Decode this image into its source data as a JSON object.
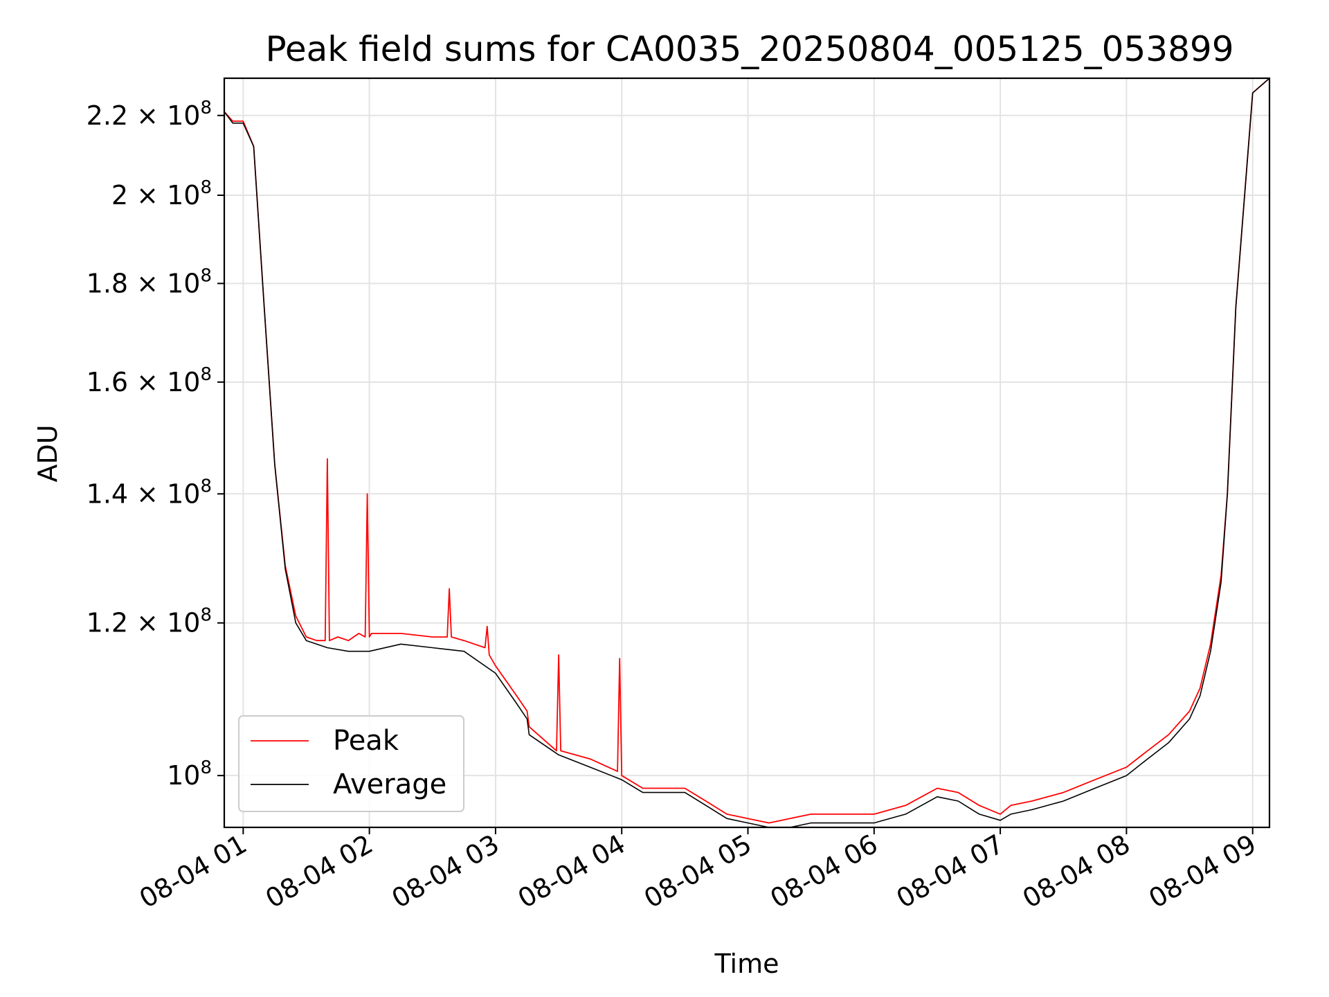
{
  "chart_data": {
    "type": "line",
    "title": "Peak field sums for CA0035_20250804_005125_053899",
    "xlabel": "Time",
    "ylabel": "ADU",
    "y_scale": "log",
    "grid": true,
    "legend_position": "lower-left",
    "xlim": [
      "2025-08-04 00:51",
      "2025-08-04 09:08"
    ],
    "ylim": [
      94000000,
      230000000
    ],
    "x_ticks": [
      "08-04 01",
      "08-04 02",
      "08-04 03",
      "08-04 04",
      "08-04 05",
      "08-04 06",
      "08-04 07",
      "08-04 08",
      "08-04 09"
    ],
    "y_ticks": [
      {
        "value": 220000000,
        "mant": "2.2",
        "exp": "8"
      },
      {
        "value": 200000000,
        "mant": "2",
        "exp": "8"
      },
      {
        "value": 180000000,
        "mant": "1.8",
        "exp": "8"
      },
      {
        "value": 160000000,
        "mant": "1.6",
        "exp": "8"
      },
      {
        "value": 140000000,
        "mant": "1.4",
        "exp": "8"
      },
      {
        "value": 120000000,
        "mant": "1.2",
        "exp": "8"
      },
      {
        "value": 100000000,
        "mant": "",
        "exp": "8"
      }
    ],
    "colors": {
      "Peak": "#ff0000",
      "Average": "#000000"
    },
    "series": [
      {
        "name": "Average",
        "x": [
          "2025-08-04 00:51",
          "2025-08-04 00:55",
          "2025-08-04 01:00",
          "2025-08-04 01:05",
          "2025-08-04 01:10",
          "2025-08-04 01:15",
          "2025-08-04 01:20",
          "2025-08-04 01:25",
          "2025-08-04 01:30",
          "2025-08-04 01:40",
          "2025-08-04 01:50",
          "2025-08-04 02:00",
          "2025-08-04 02:15",
          "2025-08-04 02:30",
          "2025-08-04 02:45",
          "2025-08-04 03:00",
          "2025-08-04 03:10",
          "2025-08-04 03:15",
          "2025-08-04 03:16",
          "2025-08-04 03:30",
          "2025-08-04 03:45",
          "2025-08-04 04:00",
          "2025-08-04 04:10",
          "2025-08-04 04:20",
          "2025-08-04 04:30",
          "2025-08-04 04:40",
          "2025-08-04 04:50",
          "2025-08-04 05:00",
          "2025-08-04 05:10",
          "2025-08-04 05:20",
          "2025-08-04 05:30",
          "2025-08-04 05:45",
          "2025-08-04 06:00",
          "2025-08-04 06:15",
          "2025-08-04 06:30",
          "2025-08-04 06:40",
          "2025-08-04 06:50",
          "2025-08-04 07:00",
          "2025-08-04 07:05",
          "2025-08-04 07:15",
          "2025-08-04 07:30",
          "2025-08-04 07:45",
          "2025-08-04 08:00",
          "2025-08-04 08:10",
          "2025-08-04 08:20",
          "2025-08-04 08:30",
          "2025-08-04 08:35",
          "2025-08-04 08:40",
          "2025-08-04 08:45",
          "2025-08-04 08:48",
          "2025-08-04 08:52",
          "2025-08-04 09:00",
          "2025-08-04 09:08"
        ],
        "values": [
          221000000,
          218000000,
          218000000,
          212000000,
          175000000,
          145000000,
          128000000,
          120000000,
          117500000,
          116500000,
          116000000,
          116000000,
          117000000,
          116500000,
          116000000,
          113000000,
          109000000,
          107000000,
          105000000,
          102500000,
          101000000,
          99500000,
          98000000,
          98000000,
          98000000,
          96500000,
          95000000,
          94500000,
          94000000,
          94000000,
          94500000,
          94500000,
          94500000,
          95500000,
          97500000,
          97000000,
          95500000,
          94800000,
          95500000,
          96000000,
          97000000,
          98500000,
          100000000,
          102000000,
          104000000,
          107000000,
          110000000,
          116000000,
          126000000,
          140000000,
          175000000,
          226000000,
          230000000
        ]
      },
      {
        "name": "Peak",
        "x": [
          "2025-08-04 00:51",
          "2025-08-04 00:55",
          "2025-08-04 01:00",
          "2025-08-04 01:05",
          "2025-08-04 01:10",
          "2025-08-04 01:15",
          "2025-08-04 01:20",
          "2025-08-04 01:25",
          "2025-08-04 01:30",
          "2025-08-04 01:35",
          "2025-08-04 01:39",
          "2025-08-04 01:40",
          "2025-08-04 01:41",
          "2025-08-04 01:45",
          "2025-08-04 01:50",
          "2025-08-04 01:55",
          "2025-08-04 01:58",
          "2025-08-04 01:59",
          "2025-08-04 02:00",
          "2025-08-04 02:01",
          "2025-08-04 02:05",
          "2025-08-04 02:15",
          "2025-08-04 02:30",
          "2025-08-04 02:37",
          "2025-08-04 02:38",
          "2025-08-04 02:39",
          "2025-08-04 02:45",
          "2025-08-04 02:55",
          "2025-08-04 02:56",
          "2025-08-04 02:57",
          "2025-08-04 03:00",
          "2025-08-04 03:10",
          "2025-08-04 03:15",
          "2025-08-04 03:16",
          "2025-08-04 03:29",
          "2025-08-04 03:30",
          "2025-08-04 03:31",
          "2025-08-04 03:45",
          "2025-08-04 03:58",
          "2025-08-04 03:59",
          "2025-08-04 04:00",
          "2025-08-04 04:10",
          "2025-08-04 04:20",
          "2025-08-04 04:30",
          "2025-08-04 04:40",
          "2025-08-04 04:50",
          "2025-08-04 05:00",
          "2025-08-04 05:10",
          "2025-08-04 05:20",
          "2025-08-04 05:30",
          "2025-08-04 05:45",
          "2025-08-04 06:00",
          "2025-08-04 06:15",
          "2025-08-04 06:30",
          "2025-08-04 06:40",
          "2025-08-04 06:50",
          "2025-08-04 07:00",
          "2025-08-04 07:05",
          "2025-08-04 07:15",
          "2025-08-04 07:30",
          "2025-08-04 07:45",
          "2025-08-04 08:00",
          "2025-08-04 08:10",
          "2025-08-04 08:20",
          "2025-08-04 08:30",
          "2025-08-04 08:35",
          "2025-08-04 08:40",
          "2025-08-04 08:45",
          "2025-08-04 08:48",
          "2025-08-04 08:52",
          "2025-08-04 09:00",
          "2025-08-04 09:08"
        ],
        "values": [
          221000000,
          218500000,
          218500000,
          212000000,
          175000000,
          145000000,
          128500000,
          121000000,
          118000000,
          117500000,
          117500000,
          146000000,
          117500000,
          118000000,
          117500000,
          118500000,
          118000000,
          140000000,
          118000000,
          118500000,
          118500000,
          118500000,
          118000000,
          118000000,
          125000000,
          118000000,
          117500000,
          116500000,
          119500000,
          115500000,
          114000000,
          110000000,
          108000000,
          106000000,
          103000000,
          115500000,
          103000000,
          102000000,
          100500000,
          115000000,
          100000000,
          98500000,
          98500000,
          98500000,
          97000000,
          95500000,
          95000000,
          94500000,
          95000000,
          95500000,
          95500000,
          95500000,
          96500000,
          98500000,
          98000000,
          96500000,
          95500000,
          96500000,
          97000000,
          98000000,
          99500000,
          101000000,
          103000000,
          105000000,
          108000000,
          111000000,
          117000000,
          127000000,
          140000000,
          175000000,
          226000000,
          230000000
        ]
      }
    ]
  }
}
